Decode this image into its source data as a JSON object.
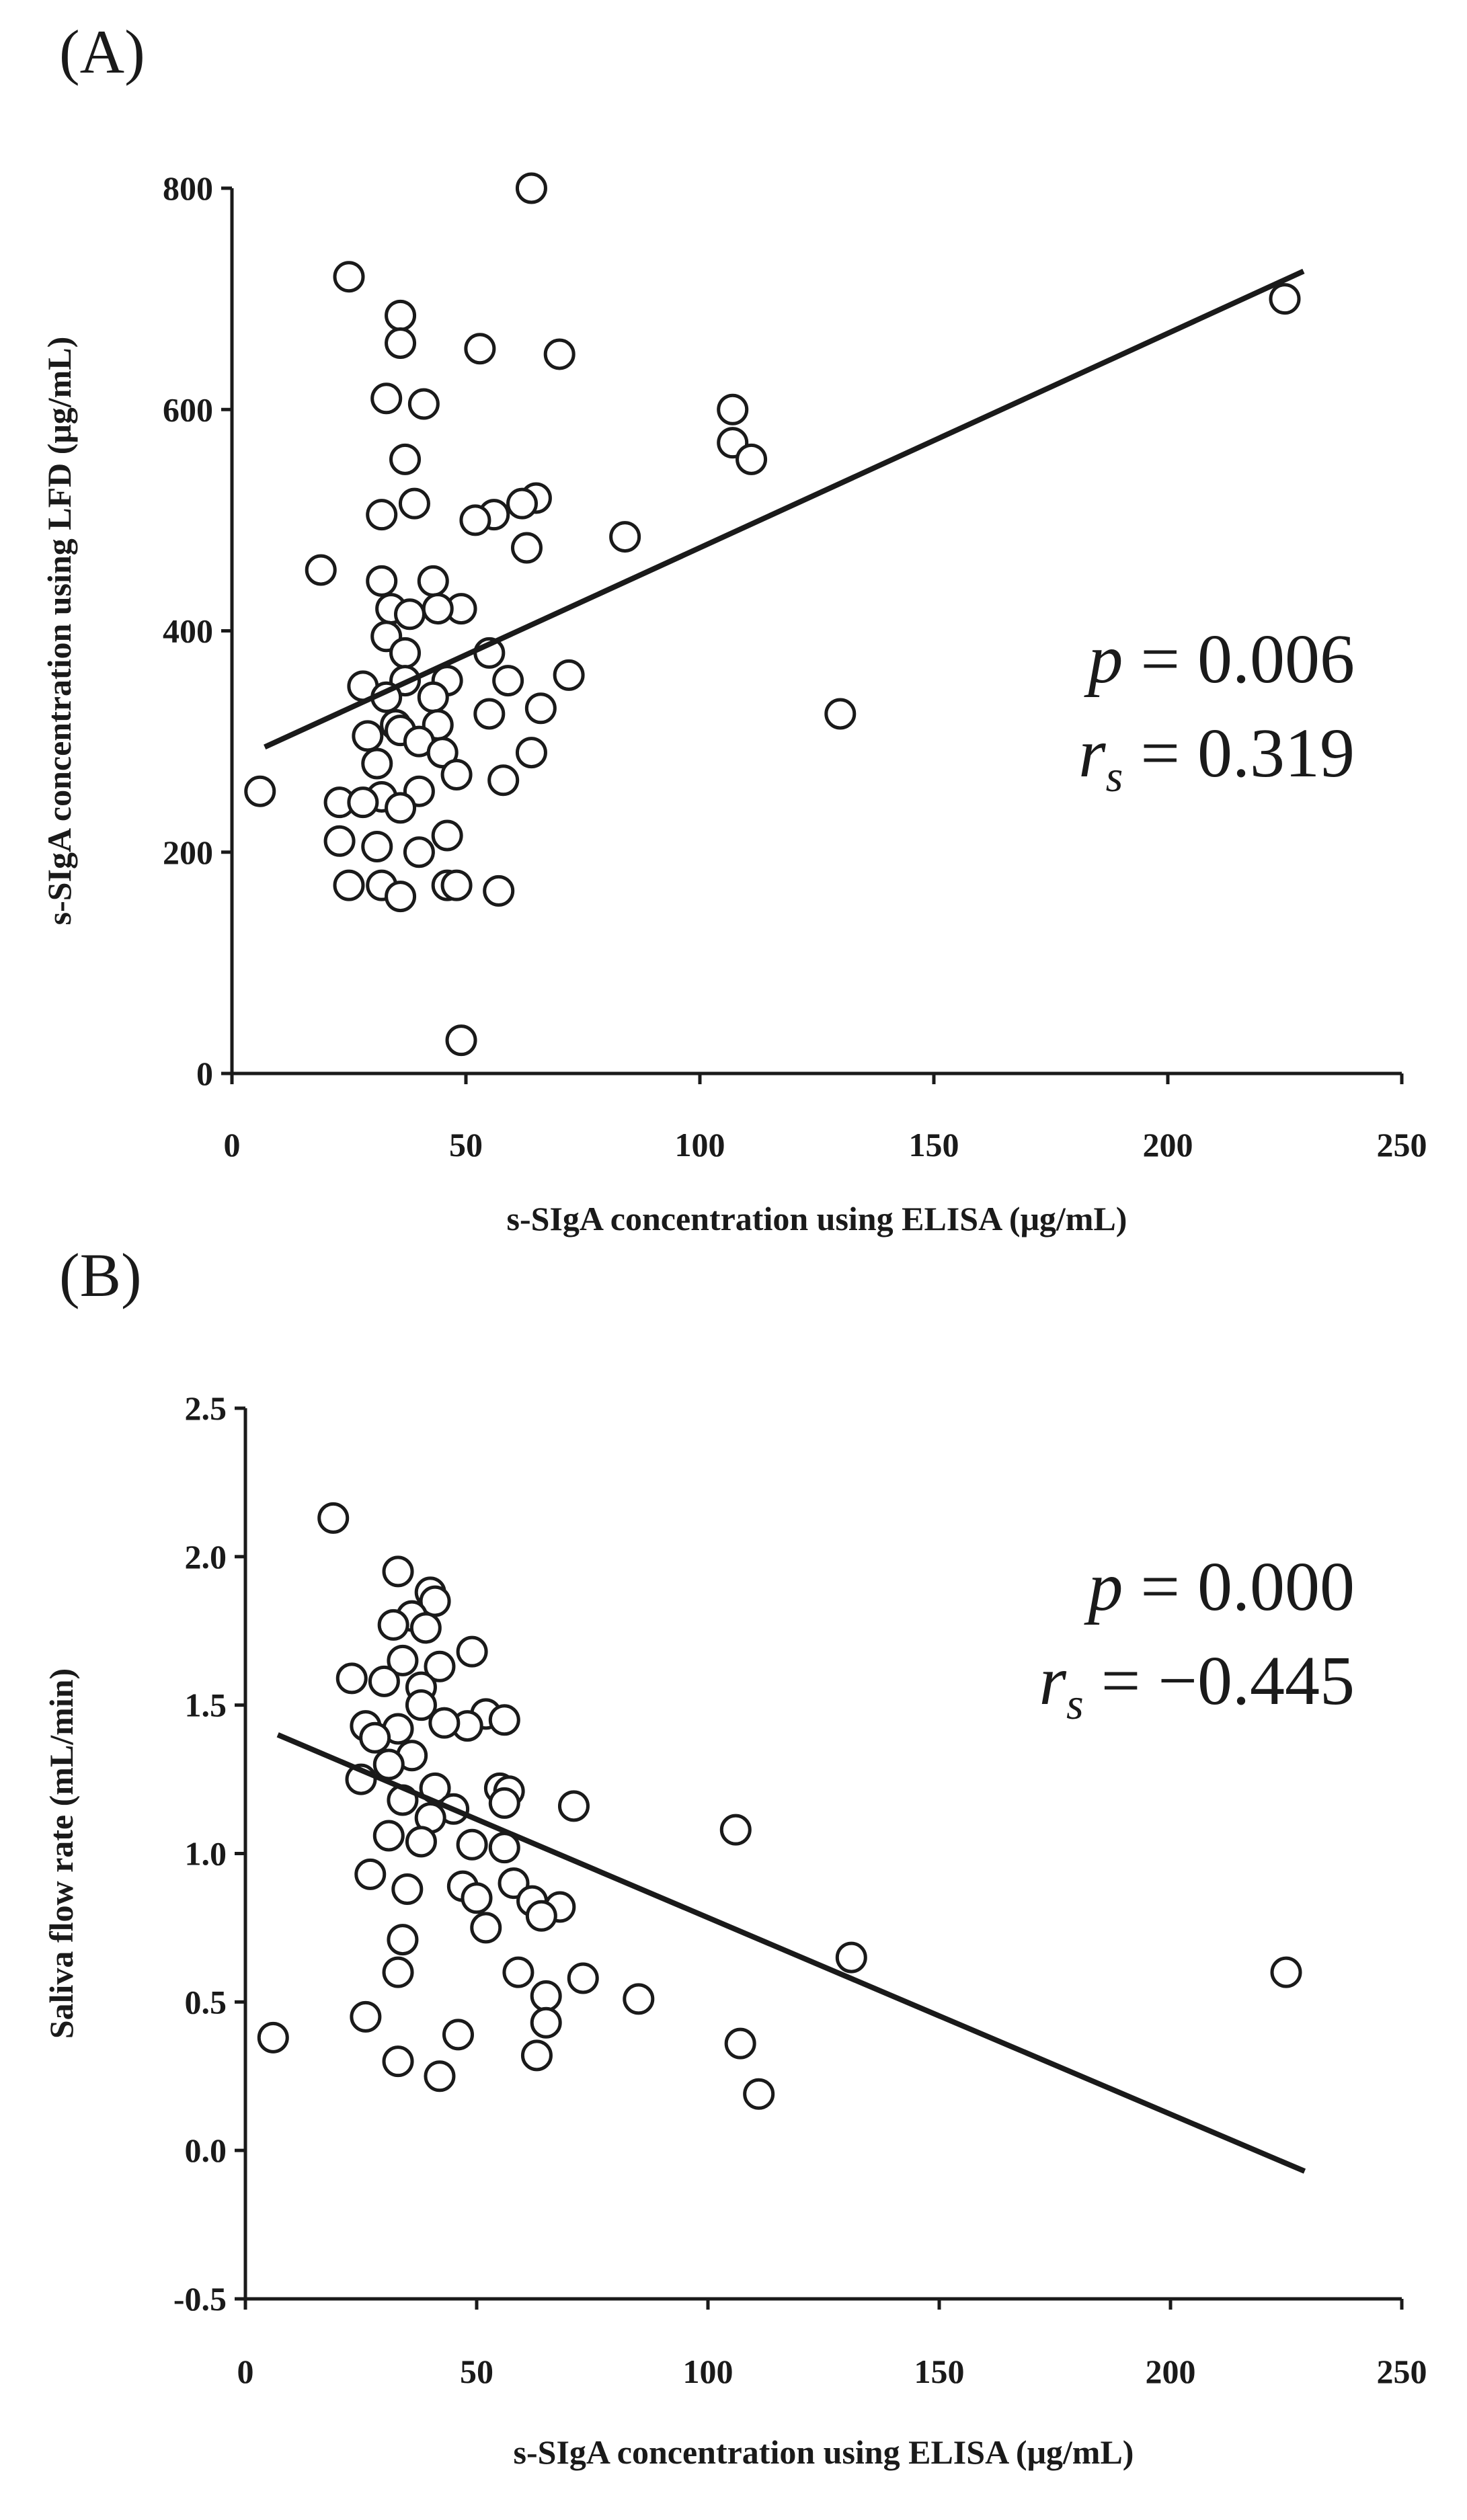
{
  "chart_data": [
    {
      "type": "scatter",
      "panel_label": "(A)",
      "xlabel": "s-SIgA concentration using ELISA (μg/mL)",
      "ylabel": "s-SIgA concentration using LFD (μg/mL)",
      "xlim": [
        0,
        250
      ],
      "ylim": [
        0,
        800
      ],
      "x_ticks": [
        0,
        50,
        100,
        150,
        200,
        250
      ],
      "y_ticks": [
        0,
        200,
        400,
        600,
        800
      ],
      "x_tick_labels": [
        "0",
        "50",
        "100",
        "150",
        "200",
        "250"
      ],
      "y_tick_labels": [
        "0",
        "200",
        "400",
        "600",
        "800"
      ],
      "grid": false,
      "stats": {
        "p_symbol": "p",
        "p_text": " = 0.006",
        "r_symbol": "r",
        "r_sub": "s",
        "r_text": " = 0.319"
      },
      "fit_line": {
        "x": [
          7,
          229
        ],
        "y": [
          295,
          725
        ]
      },
      "points": [
        [
          64,
          800
        ],
        [
          25,
          720
        ],
        [
          225,
          700
        ],
        [
          36,
          685
        ],
        [
          36,
          660
        ],
        [
          53,
          655
        ],
        [
          70,
          650
        ],
        [
          33,
          610
        ],
        [
          41,
          605
        ],
        [
          107,
          600
        ],
        [
          107,
          570
        ],
        [
          111,
          555
        ],
        [
          37,
          555
        ],
        [
          65,
          520
        ],
        [
          39,
          515
        ],
        [
          62,
          515
        ],
        [
          32,
          505
        ],
        [
          56,
          505
        ],
        [
          52,
          500
        ],
        [
          84,
          485
        ],
        [
          63,
          475
        ],
        [
          19,
          455
        ],
        [
          32,
          445
        ],
        [
          43,
          445
        ],
        [
          49,
          420
        ],
        [
          34,
          420
        ],
        [
          44,
          420
        ],
        [
          38,
          415
        ],
        [
          33,
          395
        ],
        [
          55,
          380
        ],
        [
          37,
          380
        ],
        [
          72,
          360
        ],
        [
          46,
          355
        ],
        [
          59,
          355
        ],
        [
          37,
          355
        ],
        [
          28,
          350
        ],
        [
          33,
          340
        ],
        [
          43,
          340
        ],
        [
          66,
          330
        ],
        [
          130,
          325
        ],
        [
          55,
          325
        ],
        [
          35,
          315
        ],
        [
          44,
          315
        ],
        [
          36,
          310
        ],
        [
          29,
          305
        ],
        [
          40,
          300
        ],
        [
          64,
          290
        ],
        [
          45,
          290
        ],
        [
          31,
          280
        ],
        [
          48,
          270
        ],
        [
          58,
          265
        ],
        [
          6,
          255
        ],
        [
          40,
          255
        ],
        [
          32,
          250
        ],
        [
          23,
          245
        ],
        [
          28,
          245
        ],
        [
          36,
          240
        ],
        [
          46,
          215
        ],
        [
          23,
          210
        ],
        [
          31,
          205
        ],
        [
          40,
          200
        ],
        [
          25,
          170
        ],
        [
          32,
          170
        ],
        [
          46,
          170
        ],
        [
          48,
          170
        ],
        [
          57,
          165
        ],
        [
          36,
          160
        ],
        [
          49,
          30
        ]
      ]
    },
    {
      "type": "scatter",
      "panel_label": "(B)",
      "xlabel": "s-SIgA concentration using ELISA (μg/mL)",
      "ylabel": "Saliva flow rate (mL/min)",
      "xlim": [
        0,
        250
      ],
      "ylim": [
        -0.5,
        2.5
      ],
      "x_ticks": [
        0,
        50,
        100,
        150,
        200,
        250
      ],
      "y_ticks": [
        -0.5,
        0.0,
        0.5,
        1.0,
        1.5,
        2.0,
        2.5
      ],
      "x_tick_labels": [
        "0",
        "50",
        "100",
        "150",
        "200",
        "250"
      ],
      "y_tick_labels": [
        "-0.5",
        "0.0",
        "0.5",
        "1.0",
        "1.5",
        "2.0",
        "2.5"
      ],
      "grid": false,
      "stats": {
        "p_symbol": "p",
        "p_text": " = 0.000",
        "r_symbol": "r",
        "r_sub": "s",
        "r_text": " = −0.445"
      },
      "fit_line": {
        "x": [
          7,
          229
        ],
        "y": [
          1.4,
          -0.07
        ]
      },
      "points": [
        [
          19,
          2.13
        ],
        [
          33,
          1.95
        ],
        [
          40,
          1.88
        ],
        [
          41,
          1.85
        ],
        [
          36,
          1.8
        ],
        [
          32,
          1.77
        ],
        [
          39,
          1.76
        ],
        [
          49,
          1.68
        ],
        [
          34,
          1.65
        ],
        [
          42,
          1.63
        ],
        [
          23,
          1.59
        ],
        [
          30,
          1.58
        ],
        [
          38,
          1.56
        ],
        [
          52,
          1.47
        ],
        [
          56,
          1.45
        ],
        [
          48,
          1.43
        ],
        [
          26,
          1.43
        ],
        [
          33,
          1.42
        ],
        [
          43,
          1.44
        ],
        [
          38,
          1.5
        ],
        [
          28,
          1.39
        ],
        [
          36,
          1.33
        ],
        [
          31,
          1.3
        ],
        [
          25,
          1.25
        ],
        [
          41,
          1.22
        ],
        [
          55,
          1.22
        ],
        [
          57,
          1.21
        ],
        [
          34,
          1.18
        ],
        [
          71,
          1.16
        ],
        [
          56,
          1.17
        ],
        [
          45,
          1.15
        ],
        [
          40,
          1.12
        ],
        [
          106,
          1.08
        ],
        [
          31,
          1.06
        ],
        [
          38,
          1.04
        ],
        [
          49,
          1.03
        ],
        [
          56,
          1.02
        ],
        [
          27,
          0.93
        ],
        [
          58,
          0.9
        ],
        [
          47,
          0.89
        ],
        [
          35,
          0.88
        ],
        [
          50,
          0.85
        ],
        [
          62,
          0.84
        ],
        [
          68,
          0.82
        ],
        [
          64,
          0.79
        ],
        [
          52,
          0.75
        ],
        [
          34,
          0.71
        ],
        [
          131,
          0.65
        ],
        [
          33,
          0.6
        ],
        [
          59,
          0.6
        ],
        [
          225,
          0.6
        ],
        [
          73,
          0.58
        ],
        [
          65,
          0.52
        ],
        [
          85,
          0.51
        ],
        [
          26,
          0.45
        ],
        [
          65,
          0.43
        ],
        [
          6,
          0.38
        ],
        [
          46,
          0.39
        ],
        [
          107,
          0.36
        ],
        [
          63,
          0.32
        ],
        [
          33,
          0.3
        ],
        [
          42,
          0.25
        ],
        [
          111,
          0.19
        ]
      ]
    }
  ]
}
